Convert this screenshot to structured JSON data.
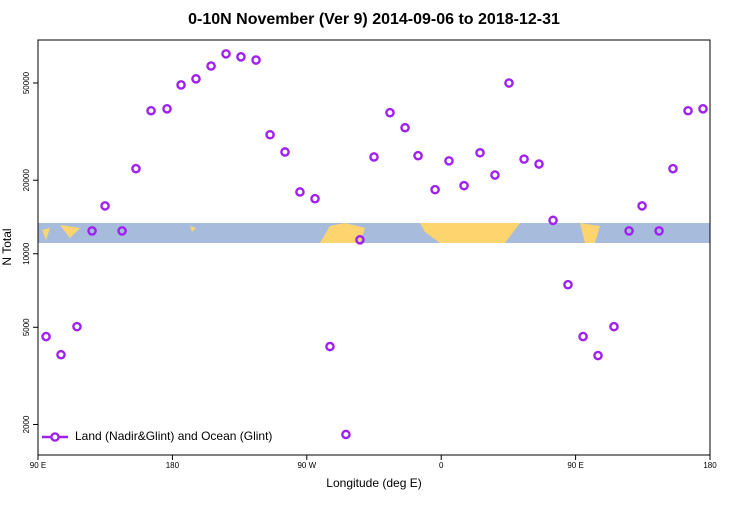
{
  "chart_data": {
    "type": "scatter",
    "title": "0-10N November (Ver 9)   2014-09-06 to 2018-12-31",
    "x_label": "Longitude (deg E)",
    "y_label": "N Total",
    "log_y": true,
    "xlim": [
      90,
      540
    ],
    "xticks": [
      {
        "value": 90,
        "label": "90 E"
      },
      180,
      {
        "value": 270,
        "label": "90 W"
      },
      {
        "value": 360,
        "label": "0"
      },
      {
        "value": 450,
        "label": "90 E"
      },
      {
        "value": 540,
        "label": "180"
      }
    ],
    "ylim": [
      1500,
      75000
    ],
    "yticks": [
      2000,
      5000,
      10000,
      20000,
      50000
    ],
    "legend": "bottom-left",
    "series": [
      {
        "name": "Land (Nadir&Glint) and Ocean (Glint)",
        "color": "#a020f0",
        "x": [
          95.4,
          105.4,
          116.1,
          126.2,
          134.9,
          146.3,
          155.6,
          165.7,
          176.4,
          185.8,
          195.8,
          205.9,
          215.9,
          225.9,
          236.0,
          245.4,
          255.4,
          265.4,
          275.5,
          285.5,
          296.2,
          305.6,
          315.0,
          325.7,
          335.8,
          344.5,
          355.9,
          365.2,
          375.3,
          386.0,
          396.0,
          405.4,
          415.5,
          425.5,
          434.9,
          444.9,
          455.0,
          465.0,
          475.7,
          485.8,
          494.5,
          505.9,
          515.2,
          525.3,
          535.3
        ],
        "values": [
          4580,
          3860,
          5030,
          12400,
          15700,
          12400,
          22300,
          38500,
          39200,
          49100,
          52000,
          58700,
          65800,
          64000,
          62100,
          30700,
          26100,
          17900,
          16800,
          4170,
          1820,
          11400,
          24900,
          37800,
          32800,
          25200,
          18300,
          24000,
          19000,
          25900,
          21000,
          50000,
          24400,
          23300,
          13700,
          7470,
          4580,
          3830,
          5030,
          12400,
          15700,
          12400,
          22300,
          38500,
          39200
        ]
      }
    ]
  }
}
